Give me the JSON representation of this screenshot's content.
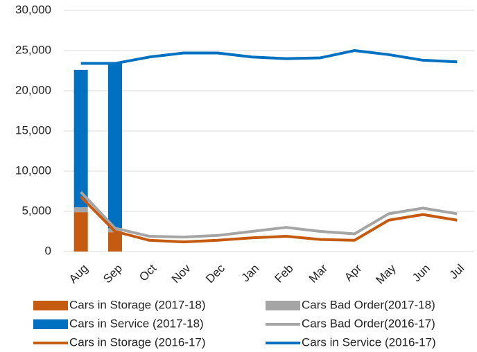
{
  "chart_data": {
    "type": "bar-line",
    "categories": [
      "Aug",
      "Sep",
      "Oct",
      "Nov",
      "Dec",
      "Jan",
      "Feb",
      "Mar",
      "Apr",
      "May",
      "Jun",
      "Jul"
    ],
    "ylim": [
      0,
      30000
    ],
    "yticks": [
      0,
      {
        "value": 5000,
        "label": "5,000"
      },
      {
        "value": 10000,
        "label": "10,000"
      },
      {
        "value": 15000,
        "label": "15,000"
      },
      {
        "value": 20000,
        "label": "20,000"
      },
      {
        "value": 25000,
        "label": "25,000"
      },
      {
        "value": 30000,
        "label": "30,000"
      }
    ],
    "grid": true,
    "legend": "bottom",
    "series": [
      {
        "name": "Cars in Storage (2017-18)",
        "kind": "bar",
        "color": "#c55a11",
        "values": [
          4900,
          2400,
          null,
          null,
          null,
          null,
          null,
          null,
          null,
          null,
          null,
          null
        ]
      },
      {
        "name": "Cars Bad Order(2017-18)",
        "kind": "bar",
        "color": "#a5a5a5",
        "values": [
          600,
          500,
          null,
          null,
          null,
          null,
          null,
          null,
          null,
          null,
          null,
          null
        ]
      },
      {
        "name": "Cars in Service (2017-18)",
        "kind": "bar",
        "color": "#0070c0",
        "values": [
          17100,
          20500,
          null,
          null,
          null,
          null,
          null,
          null,
          null,
          null,
          null,
          null
        ]
      },
      {
        "name": "Cars Bad Order(2016-17)",
        "kind": "line",
        "color": "#a5a5a5",
        "values": [
          7400,
          2900,
          1900,
          1800,
          2000,
          2500,
          3000,
          2500,
          2200,
          4700,
          5400,
          4700
        ]
      },
      {
        "name": "Cars in Storage (2016-17)",
        "kind": "line",
        "color": "#c55a11",
        "values": [
          6800,
          2500,
          1400,
          1200,
          1400,
          1700,
          1900,
          1500,
          1400,
          3900,
          4600,
          3900
        ]
      },
      {
        "name": "Cars in Service (2016-17)",
        "kind": "line",
        "color": "#0070c0",
        "values": [
          23400,
          23400,
          24200,
          24700,
          24700,
          24200,
          24000,
          24100,
          25000,
          24500,
          23800,
          23600
        ]
      }
    ]
  }
}
